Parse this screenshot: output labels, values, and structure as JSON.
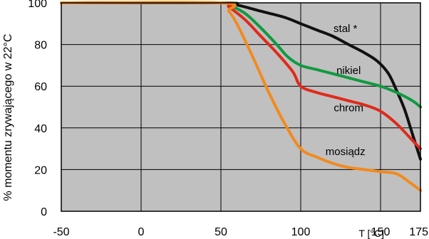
{
  "chart_data": {
    "type": "line",
    "title": "",
    "ylabel": "% momentu zrywającego w 22°C",
    "xlabel": "T [°C]",
    "xlim": [
      -50,
      175
    ],
    "ylim": [
      0,
      100
    ],
    "xticks": [
      -50,
      0,
      50,
      100,
      150,
      175
    ],
    "yticks": [
      0,
      20,
      40,
      60,
      80,
      100
    ],
    "grid": true,
    "series": [
      {
        "name": "stal *",
        "color": "#111111",
        "label_at": [
          128,
          88
        ],
        "points": [
          [
            -50,
            100
          ],
          [
            50,
            100
          ],
          [
            60,
            99
          ],
          [
            75,
            96
          ],
          [
            90,
            93
          ],
          [
            100,
            90
          ],
          [
            110,
            87
          ],
          [
            120,
            84
          ],
          [
            130,
            80
          ],
          [
            140,
            76
          ],
          [
            148,
            72
          ],
          [
            155,
            66
          ],
          [
            160,
            58
          ],
          [
            165,
            49
          ],
          [
            170,
            37
          ],
          [
            175,
            25
          ]
        ]
      },
      {
        "name": "nikiel",
        "color": "#109a40",
        "label_at": [
          130,
          68
        ],
        "points": [
          [
            -50,
            100
          ],
          [
            50,
            100
          ],
          [
            55,
            99
          ],
          [
            65,
            95
          ],
          [
            75,
            88
          ],
          [
            85,
            80
          ],
          [
            92,
            74
          ],
          [
            100,
            70
          ],
          [
            110,
            68
          ],
          [
            120,
            66
          ],
          [
            130,
            64
          ],
          [
            140,
            62
          ],
          [
            150,
            60
          ],
          [
            160,
            57
          ],
          [
            170,
            53
          ],
          [
            175,
            50
          ]
        ]
      },
      {
        "name": "chrom",
        "color": "#e02a1a",
        "label_at": [
          130,
          50
        ],
        "points": [
          [
            -50,
            100
          ],
          [
            50,
            100
          ],
          [
            55,
            98
          ],
          [
            65,
            92
          ],
          [
            75,
            84
          ],
          [
            85,
            76
          ],
          [
            95,
            67
          ],
          [
            100,
            60
          ],
          [
            110,
            57
          ],
          [
            120,
            55
          ],
          [
            130,
            53
          ],
          [
            140,
            51
          ],
          [
            150,
            48
          ],
          [
            160,
            42
          ],
          [
            170,
            34
          ],
          [
            175,
            30
          ]
        ]
      },
      {
        "name": "mosiądz",
        "color": "#f28a1e",
        "label_at": [
          128,
          29
        ],
        "points": [
          [
            -50,
            100
          ],
          [
            50,
            100
          ],
          [
            55,
            96
          ],
          [
            60,
            90
          ],
          [
            70,
            74
          ],
          [
            80,
            57
          ],
          [
            90,
            42
          ],
          [
            100,
            30
          ],
          [
            110,
            26
          ],
          [
            120,
            23
          ],
          [
            130,
            21
          ],
          [
            140,
            20
          ],
          [
            150,
            19
          ],
          [
            160,
            18
          ],
          [
            168,
            14
          ],
          [
            175,
            10
          ]
        ]
      }
    ]
  }
}
